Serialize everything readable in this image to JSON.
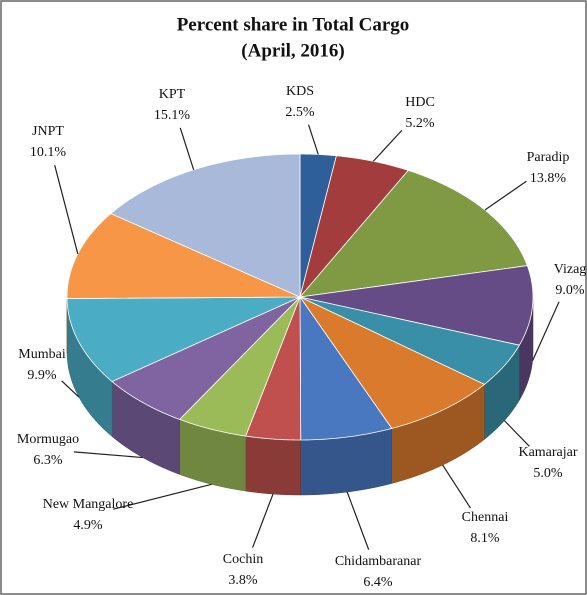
{
  "chart_data": {
    "type": "pie",
    "title": "Percent share in Total Cargo",
    "subtitle": "(April, 2016)",
    "categories": [
      "KDS",
      "HDC",
      "Paradip",
      "Vizag",
      "Kamarajar",
      "Chennai",
      "Chidambaranar",
      "Cochin",
      "New Mangalore",
      "Mormugao",
      "Mumbai",
      "JNPT",
      "KPT"
    ],
    "values": [
      2.5,
      5.2,
      13.8,
      9.0,
      5.0,
      8.1,
      6.4,
      3.8,
      4.9,
      6.3,
      9.9,
      10.1,
      15.1
    ],
    "value_labels": [
      "2.5%",
      "5.2%",
      "13.8%",
      "9.0%",
      "5.0%",
      "8.1%",
      "6.4%",
      "3.8%",
      "4.9%",
      "6.3%",
      "9.9%",
      "10.1%",
      "15.1%"
    ],
    "colors": [
      "#2f5f9a",
      "#a33c3c",
      "#7f9a42",
      "#654c87",
      "#3a8fa8",
      "#d97a2c",
      "#4a78c0",
      "#c0504d",
      "#9bbb59",
      "#8064a2",
      "#4bacc6",
      "#f79646",
      "#a9b9d9"
    ]
  }
}
